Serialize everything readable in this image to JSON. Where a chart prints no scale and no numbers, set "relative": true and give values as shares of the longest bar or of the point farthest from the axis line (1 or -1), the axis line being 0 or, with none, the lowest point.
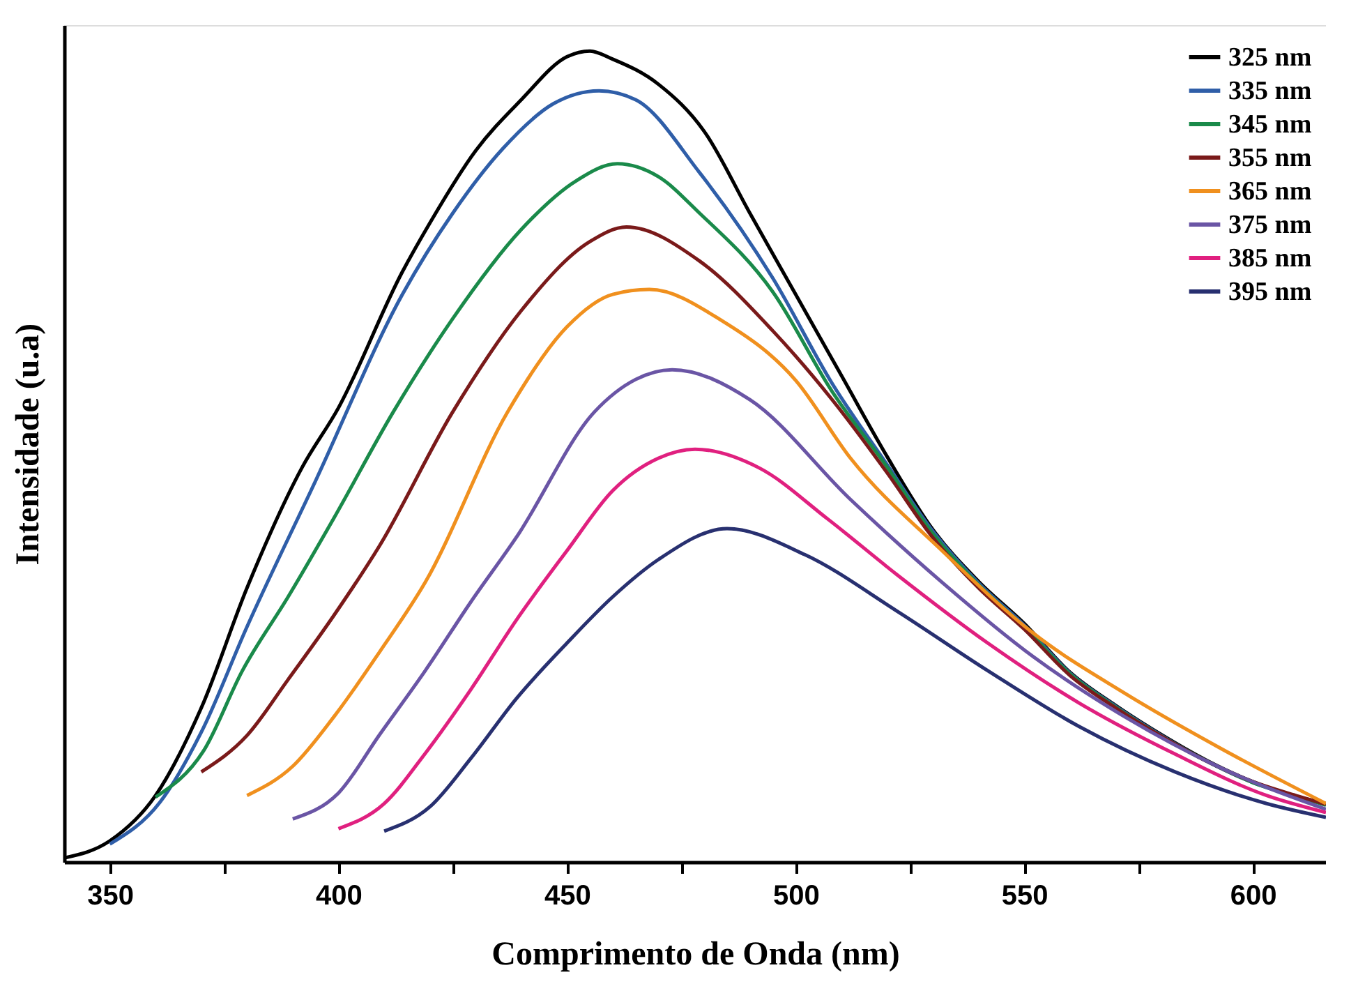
{
  "chart_data": {
    "type": "line",
    "xlabel": "Comprimento de Onda (nm)",
    "ylabel": "Intensidade (u.a)",
    "relative": true,
    "xlim": [
      340,
      616
    ],
    "xticks": [
      350,
      {
        "value": 375,
        "label": null
      },
      400,
      {
        "value": 425,
        "label": null
      },
      450,
      {
        "value": 475,
        "label": null
      },
      500,
      {
        "value": 525,
        "label": null
      },
      550,
      {
        "value": 575,
        "label": null
      },
      600
    ],
    "legend": "top right",
    "series": [
      {
        "name": "325 nm",
        "color": "#000000",
        "x": [
          340,
          350,
          360,
          370,
          380,
          392,
          400,
          414,
          420,
          430,
          440,
          450,
          455,
          460,
          470,
          480,
          490,
          500,
          510,
          520,
          530,
          540,
          550,
          560,
          570,
          580,
          590,
          600,
          610,
          616
        ],
        "values": [
          0.005,
          0.026,
          0.082,
          0.19,
          0.338,
          0.486,
          0.56,
          0.728,
          0.788,
          0.877,
          0.94,
          0.993,
          1.0,
          0.99,
          0.959,
          0.901,
          0.8,
          0.7,
          0.6,
          0.5,
          0.41,
          0.346,
          0.294,
          0.234,
          0.193,
          0.157,
          0.125,
          0.099,
          0.08,
          0.072
        ]
      },
      {
        "name": "335 nm",
        "color": "#2f5ea8",
        "x": [
          350,
          361,
          370,
          380,
          395,
          414,
          425,
          436,
          447,
          457,
          465,
          479,
          495,
          508,
          520,
          530,
          540,
          550,
          560,
          570,
          580,
          590,
          600,
          610,
          616
        ],
        "values": [
          0.022,
          0.074,
          0.16,
          0.29,
          0.47,
          0.7,
          0.8,
          0.88,
          0.935,
          0.951,
          0.94,
          0.85,
          0.72,
          0.59,
          0.49,
          0.408,
          0.344,
          0.292,
          0.233,
          0.192,
          0.156,
          0.124,
          0.098,
          0.08,
          0.071
        ]
      },
      {
        "name": "345 nm",
        "color": "#1a8a4a",
        "x": [
          360,
          370.5,
          379,
          389,
          399,
          412,
          425,
          440,
          452,
          461,
          470,
          479,
          495,
          508,
          520,
          530,
          540,
          550,
          560,
          570,
          580,
          590,
          600,
          610,
          616
        ],
        "values": [
          0.08,
          0.137,
          0.236,
          0.327,
          0.424,
          0.555,
          0.67,
          0.78,
          0.84,
          0.861,
          0.845,
          0.8,
          0.703,
          0.58,
          0.487,
          0.405,
          0.342,
          0.29,
          0.232,
          0.191,
          0.155,
          0.124,
          0.098,
          0.08,
          0.07
        ]
      },
      {
        "name": "355 nm",
        "color": "#7a1a1a",
        "x": [
          370,
          380,
          389,
          399,
          409,
          425,
          440,
          455,
          463,
          479,
          495,
          508,
          520,
          530,
          540,
          550,
          560,
          570,
          580,
          590,
          600,
          610,
          616
        ],
        "values": [
          0.111,
          0.156,
          0.225,
          0.304,
          0.39,
          0.555,
          0.68,
          0.765,
          0.783,
          0.741,
          0.655,
          0.57,
          0.48,
          0.4,
          0.338,
          0.287,
          0.23,
          0.19,
          0.155,
          0.124,
          0.099,
          0.081,
          0.071
        ]
      },
      {
        "name": "365 nm",
        "color": "#f0901e",
        "x": [
          380,
          390,
          399,
          409,
          419,
          437,
          450,
          460,
          468,
          484,
          500,
          512,
          532,
          552,
          572,
          593,
          616
        ],
        "values": [
          0.082,
          0.118,
          0.179,
          0.259,
          0.345,
          0.555,
          0.66,
          0.7,
          0.706,
          0.667,
          0.594,
          0.498,
          0.384,
          0.282,
          0.208,
          0.14,
          0.072
        ]
      },
      {
        "name": "375 nm",
        "color": "#6a55a5",
        "x": [
          390,
          400,
          409,
          419,
          429,
          439,
          456,
          465,
          473,
          490,
          512,
          532,
          552,
          572,
          593,
          616
        ],
        "values": [
          0.053,
          0.085,
          0.157,
          0.236,
          0.321,
          0.401,
          0.555,
          0.595,
          0.607,
          0.57,
          0.447,
          0.345,
          0.253,
          0.179,
          0.116,
          0.065
        ]
      },
      {
        "name": "385 nm",
        "color": "#e0207f",
        "x": [
          400,
          410,
          419,
          429,
          439,
          450,
          460,
          470,
          478,
          492,
          507,
          522,
          542,
          562,
          583,
          603,
          616
        ],
        "values": [
          0.041,
          0.072,
          0.134,
          0.213,
          0.299,
          0.384,
          0.458,
          0.498,
          0.509,
          0.486,
          0.423,
          0.355,
          0.27,
          0.196,
          0.133,
          0.082,
          0.061
        ]
      },
      {
        "name": "395 nm",
        "color": "#283070",
        "x": [
          410,
          420,
          429,
          439,
          450,
          460,
          470,
          485,
          502,
          522,
          542,
          562,
          583,
          603,
          616
        ],
        "values": [
          0.038,
          0.068,
          0.128,
          0.202,
          0.27,
          0.327,
          0.373,
          0.411,
          0.379,
          0.31,
          0.236,
          0.167,
          0.111,
          0.072,
          0.055
        ]
      }
    ]
  }
}
